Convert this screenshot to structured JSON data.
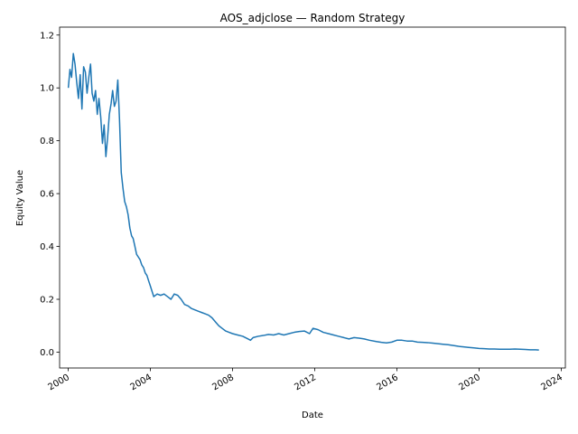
{
  "chart_data": {
    "type": "line",
    "title": "AOS_adjclose — Random Strategy",
    "xlabel": "Date",
    "ylabel": "Equity Value",
    "xlim": [
      "1999-08-01",
      "2024-03-15"
    ],
    "ylim": [
      -0.06,
      1.23
    ],
    "grid": false,
    "legend": "none",
    "x_ticks": [
      "2000",
      "2004",
      "2008",
      "2012",
      "2016",
      "2020",
      "2024"
    ],
    "y_ticks": [
      "0.0",
      "0.2",
      "0.4",
      "0.6",
      "0.8",
      "1.0",
      "1.2"
    ],
    "y_tick_values": [
      0.0,
      0.2,
      0.4,
      0.6,
      0.8,
      1.0,
      1.2
    ],
    "series": [
      {
        "color": "#1f77b4",
        "x": [
          "2000-01-03",
          "2000-02-01",
          "2000-03-01",
          "2000-04-01",
          "2000-05-01",
          "2000-06-01",
          "2000-07-01",
          "2000-08-01",
          "2000-09-01",
          "2000-10-01",
          "2000-11-01",
          "2000-12-01",
          "2001-01-01",
          "2001-02-01",
          "2001-03-01",
          "2001-04-01",
          "2001-05-01",
          "2001-06-01",
          "2001-07-01",
          "2001-08-01",
          "2001-09-01",
          "2001-10-01",
          "2001-11-01",
          "2001-12-01",
          "2002-01-01",
          "2002-02-01",
          "2002-03-01",
          "2002-04-01",
          "2002-05-01",
          "2002-06-01",
          "2002-07-01",
          "2002-08-01",
          "2002-09-01",
          "2002-10-01",
          "2002-11-01",
          "2002-12-01",
          "2003-01-01",
          "2003-02-01",
          "2003-03-01",
          "2003-04-01",
          "2003-05-01",
          "2003-06-01",
          "2003-07-01",
          "2003-08-01",
          "2003-09-01",
          "2003-10-01",
          "2003-11-01",
          "2003-12-01",
          "2004-01-01",
          "2004-03-01",
          "2004-05-01",
          "2004-07-01",
          "2004-09-01",
          "2004-11-01",
          "2005-01-01",
          "2005-03-01",
          "2005-05-01",
          "2005-07-01",
          "2005-09-01",
          "2005-11-01",
          "2006-01-01",
          "2006-03-01",
          "2006-05-01",
          "2006-07-01",
          "2006-09-01",
          "2006-11-01",
          "2007-01-01",
          "2007-03-01",
          "2007-05-01",
          "2007-07-01",
          "2007-09-01",
          "2007-11-01",
          "2008-01-01",
          "2008-04-01",
          "2008-07-01",
          "2008-10-01",
          "2008-11-15",
          "2009-01-01",
          "2009-04-01",
          "2009-07-01",
          "2009-10-01",
          "2010-01-01",
          "2010-04-01",
          "2010-07-01",
          "2010-10-01",
          "2011-01-01",
          "2011-04-01",
          "2011-07-01",
          "2011-10-01",
          "2011-12-01",
          "2012-03-01",
          "2012-06-01",
          "2012-09-01",
          "2012-12-01",
          "2013-03-01",
          "2013-06-01",
          "2013-09-01",
          "2013-12-01",
          "2014-03-01",
          "2014-06-01",
          "2014-09-01",
          "2015-01-01",
          "2015-04-01",
          "2015-07-01",
          "2015-10-01",
          "2016-01-01",
          "2016-04-01",
          "2016-07-01",
          "2016-10-01",
          "2017-01-01",
          "2017-04-01",
          "2017-07-01",
          "2017-10-01",
          "2018-01-01",
          "2018-04-01",
          "2018-07-01",
          "2018-10-01",
          "2019-01-01",
          "2019-04-01",
          "2019-07-01",
          "2019-10-01",
          "2020-01-01",
          "2020-04-01",
          "2020-07-01",
          "2020-10-01",
          "2021-01-01",
          "2021-04-01",
          "2021-07-01",
          "2021-10-01",
          "2022-01-01",
          "2022-04-01",
          "2022-07-01",
          "2022-10-01",
          "2022-12-01"
        ],
        "y": [
          1.0,
          1.07,
          1.04,
          1.13,
          1.09,
          1.02,
          0.96,
          1.05,
          0.92,
          1.08,
          1.06,
          0.98,
          1.04,
          1.09,
          0.98,
          0.95,
          0.99,
          0.9,
          0.96,
          0.89,
          0.79,
          0.86,
          0.74,
          0.81,
          0.9,
          0.94,
          0.99,
          0.93,
          0.95,
          1.03,
          0.88,
          0.68,
          0.62,
          0.57,
          0.55,
          0.52,
          0.47,
          0.44,
          0.43,
          0.4,
          0.37,
          0.36,
          0.35,
          0.33,
          0.32,
          0.3,
          0.29,
          0.27,
          0.25,
          0.21,
          0.22,
          0.215,
          0.22,
          0.21,
          0.2,
          0.22,
          0.215,
          0.2,
          0.18,
          0.175,
          0.165,
          0.16,
          0.155,
          0.15,
          0.145,
          0.14,
          0.13,
          0.115,
          0.1,
          0.09,
          0.08,
          0.075,
          0.07,
          0.065,
          0.06,
          0.05,
          0.045,
          0.055,
          0.06,
          0.063,
          0.067,
          0.065,
          0.07,
          0.065,
          0.07,
          0.075,
          0.078,
          0.08,
          0.07,
          0.09,
          0.085,
          0.075,
          0.07,
          0.065,
          0.06,
          0.055,
          0.05,
          0.055,
          0.053,
          0.05,
          0.045,
          0.04,
          0.037,
          0.035,
          0.038,
          0.045,
          0.045,
          0.042,
          0.042,
          0.038,
          0.037,
          0.036,
          0.034,
          0.032,
          0.03,
          0.028,
          0.025,
          0.022,
          0.02,
          0.018,
          0.016,
          0.014,
          0.013,
          0.012,
          0.012,
          0.011,
          0.011,
          0.011,
          0.012,
          0.011,
          0.01,
          0.009,
          0.009,
          0.008
        ]
      }
    ]
  }
}
